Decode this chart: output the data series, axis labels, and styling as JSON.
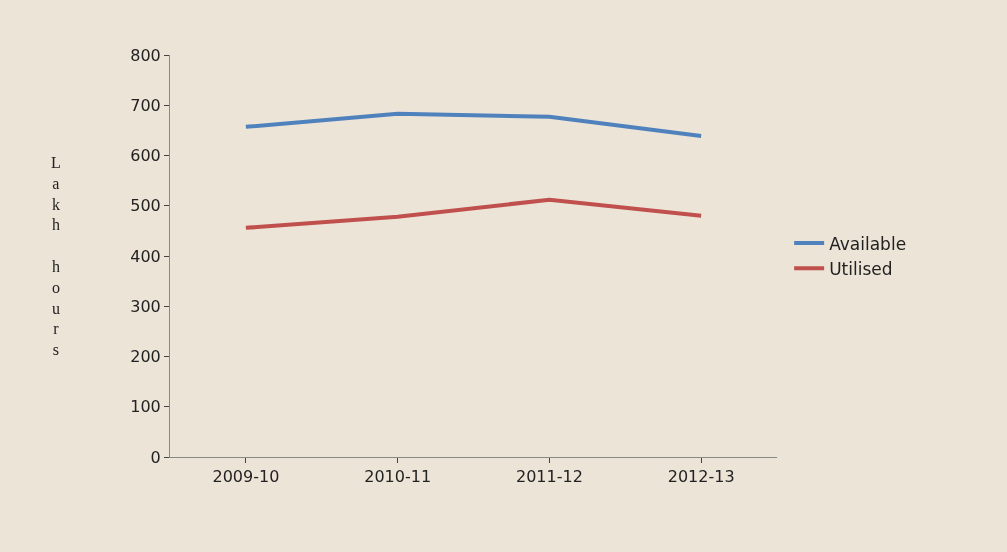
{
  "chart_data": {
    "type": "line",
    "ylabel": "Lakh hours",
    "categories": [
      "2009-10",
      "2010-11",
      "2011-12",
      "2012-13"
    ],
    "series": [
      {
        "name": "Available",
        "color": "#4f81bd",
        "values": [
          657,
          683,
          677,
          639
        ]
      },
      {
        "name": "Utilised",
        "color": "#c0504d",
        "values": [
          456,
          478,
          512,
          480
        ]
      }
    ],
    "ylim": [
      0,
      800
    ],
    "yticks": [
      0,
      100,
      200,
      300,
      400,
      500,
      600,
      700,
      800
    ],
    "grid": false,
    "legend": "right",
    "marker": "none",
    "line_style": "solid"
  }
}
